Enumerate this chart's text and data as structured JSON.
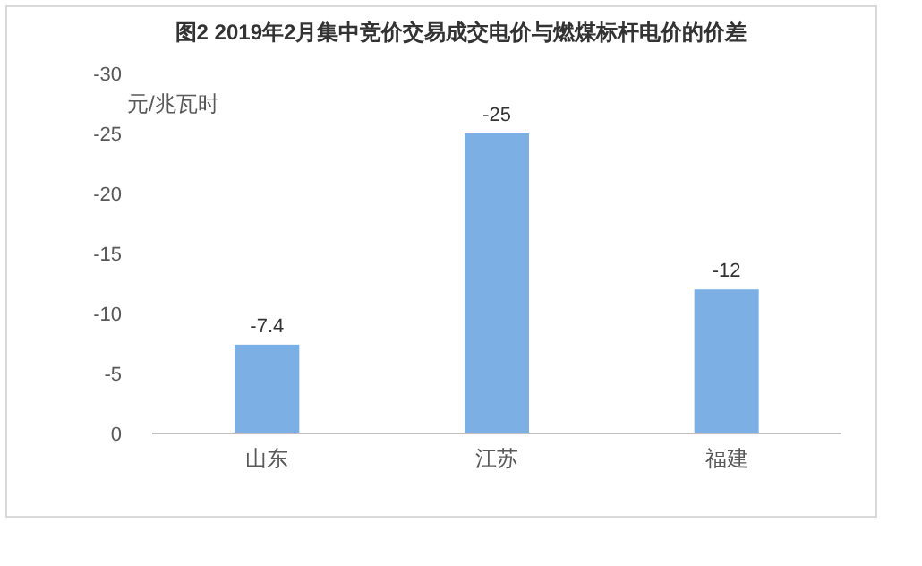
{
  "chart_data": {
    "type": "bar",
    "title": "图2  2019年2月集中竞价交易成交电价与燃煤标杆电价的价差",
    "ylabel": "元/兆瓦时",
    "categories": [
      "山东",
      "江苏",
      "福建"
    ],
    "series": [
      {
        "color": "#7cafe4",
        "values": [
          -7.4,
          -25,
          -12
        ]
      }
    ],
    "ylim": [
      0,
      -30
    ],
    "yticks": [
      0,
      -5,
      -10,
      -15,
      -20,
      -25,
      -30
    ],
    "data_labels": true
  }
}
